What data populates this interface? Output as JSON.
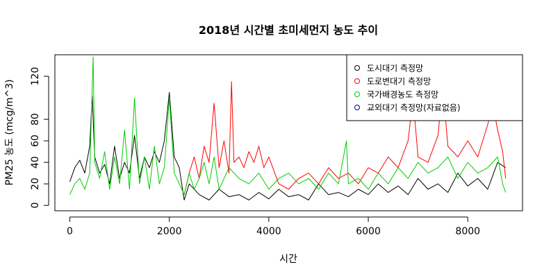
{
  "chart_data": {
    "type": "line",
    "title": "2018년 시간별 초미세먼지 농도 추이",
    "xlabel": "시간",
    "ylabel": "PM25 농도 (mcg/m^3)",
    "xlim": [
      -300,
      9100
    ],
    "ylim": [
      -5,
      140
    ],
    "x_ticks": [
      0,
      2000,
      4000,
      6000,
      8000
    ],
    "x_tick_labels": [
      "0",
      "2000",
      "4000",
      "6000",
      "8000"
    ],
    "y_ticks": [
      0,
      20,
      40,
      60,
      80,
      120
    ],
    "y_tick_labels": [
      "0",
      "20",
      "40",
      "60",
      "80",
      "120"
    ],
    "legend_position": "top-right",
    "series": [
      {
        "name": "도시대기 측정망",
        "color": "#000000",
        "x": [
          0,
          100,
          200,
          300,
          400,
          450,
          500,
          600,
          700,
          800,
          900,
          1000,
          1100,
          1200,
          1300,
          1400,
          1500,
          1600,
          1700,
          1800,
          1900,
          2000,
          2100,
          2200,
          2300,
          2400,
          2600,
          2800,
          3000,
          3200,
          3400,
          3600,
          3800,
          4000,
          4200,
          4400,
          4600,
          4800,
          5000,
          5200,
          5400,
          5600,
          5800,
          6000,
          6200,
          6400,
          6600,
          6800,
          7000,
          7200,
          7400,
          7600,
          7800,
          8000,
          8200,
          8400,
          8600,
          8760
        ],
        "y": [
          22,
          35,
          42,
          30,
          55,
          102,
          45,
          30,
          38,
          20,
          55,
          25,
          40,
          30,
          65,
          25,
          45,
          35,
          50,
          40,
          60,
          105,
          45,
          35,
          5,
          20,
          10,
          5,
          15,
          8,
          10,
          5,
          12,
          6,
          15,
          8,
          10,
          5,
          20,
          10,
          12,
          8,
          15,
          10,
          20,
          12,
          18,
          10,
          25,
          15,
          20,
          12,
          30,
          18,
          25,
          15,
          40,
          35
        ]
      },
      {
        "name": "도로변대기 측정망",
        "color": "#ff0000",
        "x": [
          2300,
          2400,
          2500,
          2600,
          2700,
          2800,
          2900,
          3000,
          3100,
          3200,
          3250,
          3300,
          3400,
          3500,
          3600,
          3700,
          3800,
          3900,
          4000,
          4200,
          4400,
          4600,
          4800,
          5000,
          5200,
          5400,
          5600,
          5800,
          6000,
          6200,
          6400,
          6600,
          6800,
          6900,
          7000,
          7200,
          7400,
          7500,
          7600,
          7800,
          8000,
          8200,
          8400,
          8500,
          8600,
          8700,
          8760
        ],
        "y": [
          10,
          30,
          45,
          25,
          55,
          40,
          95,
          35,
          60,
          30,
          115,
          40,
          45,
          35,
          50,
          40,
          55,
          35,
          45,
          20,
          15,
          25,
          30,
          20,
          35,
          25,
          30,
          20,
          35,
          30,
          45,
          35,
          60,
          100,
          45,
          40,
          65,
          110,
          55,
          45,
          60,
          45,
          75,
          95,
          70,
          50,
          25
        ]
      },
      {
        "name": "국가배경농도 측정망",
        "color": "#00cc00",
        "x": [
          0,
          100,
          200,
          300,
          400,
          470,
          500,
          600,
          700,
          800,
          900,
          1000,
          1100,
          1200,
          1300,
          1400,
          1500,
          1600,
          1700,
          1800,
          1900,
          2000,
          2100,
          2200,
          2300,
          2400,
          2500,
          2600,
          2700,
          2800,
          2900,
          3000,
          3200,
          3400,
          3600,
          3800,
          4000,
          4200,
          4400,
          4600,
          4800,
          5000,
          5200,
          5400,
          5500,
          5560,
          5600,
          5800,
          6000,
          6200,
          6400,
          6600,
          6800,
          7000,
          7200,
          7400,
          7600,
          7800,
          8000,
          8200,
          8400,
          8600,
          8700,
          8760
        ],
        "y": [
          10,
          20,
          25,
          15,
          30,
          138,
          40,
          25,
          50,
          15,
          45,
          20,
          70,
          15,
          100,
          20,
          45,
          15,
          55,
          20,
          35,
          100,
          30,
          20,
          10,
          30,
          15,
          25,
          40,
          20,
          45,
          15,
          35,
          25,
          20,
          30,
          15,
          25,
          30,
          20,
          25,
          15,
          30,
          20,
          45,
          60,
          20,
          25,
          15,
          30,
          20,
          35,
          25,
          40,
          30,
          35,
          45,
          25,
          40,
          30,
          35,
          45,
          20,
          12
        ]
      },
      {
        "name": "교외대기 측정망(자료없음)",
        "color": "#00008b",
        "x": [],
        "y": []
      }
    ]
  }
}
